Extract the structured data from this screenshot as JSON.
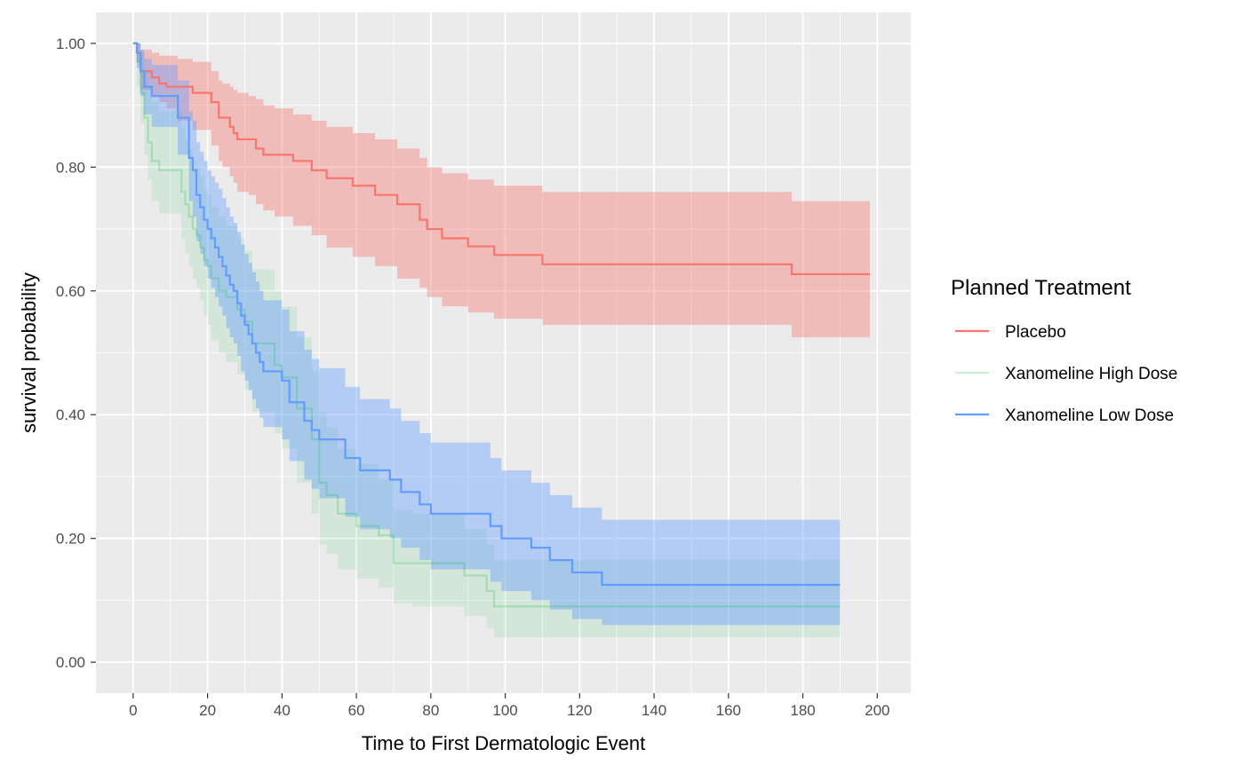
{
  "chart_data": {
    "type": "line",
    "subtype": "kaplan-meier step curves with confidence bands",
    "xlabel": "Time to First Dermatologic Event",
    "ylabel": "survival probability",
    "xlim": [
      -10,
      209
    ],
    "ylim": [
      -0.05,
      1.05
    ],
    "x_ticks": [
      0,
      20,
      40,
      60,
      80,
      100,
      120,
      140,
      160,
      180,
      200
    ],
    "x_tick_labels": [
      "0",
      "20",
      "40",
      "60",
      "80",
      "100",
      "120",
      "140",
      "160",
      "180",
      "200"
    ],
    "y_ticks": [
      0,
      0.2,
      0.4,
      0.6,
      0.8,
      1.0
    ],
    "y_tick_labels": [
      "0.00",
      "0.20",
      "0.40",
      "0.60",
      "0.80",
      "1.00"
    ],
    "grid": true,
    "panel_background": "#ebebeb",
    "legend": {
      "title": "Planned Treatment",
      "position": "right",
      "entries": [
        "Placebo",
        "Xanomeline High Dose",
        "Xanomeline Low Dose"
      ]
    },
    "series": [
      {
        "name": "Placebo",
        "color": "#f8766d",
        "line_opacity": 1.0,
        "band_opacity": 0.4,
        "x": [
          0,
          1,
          2,
          5,
          7,
          9,
          12,
          16,
          21,
          23,
          24,
          26,
          27,
          28,
          31,
          33,
          35,
          38,
          43,
          48,
          52,
          59,
          65,
          71,
          77,
          79,
          83,
          90,
          97,
          110,
          177,
          198
        ],
        "y": [
          1.0,
          0.985,
          0.955,
          0.945,
          0.935,
          0.93,
          0.93,
          0.92,
          0.905,
          0.88,
          0.88,
          0.865,
          0.855,
          0.845,
          0.845,
          0.83,
          0.82,
          0.82,
          0.81,
          0.795,
          0.782,
          0.77,
          0.755,
          0.74,
          0.715,
          0.7,
          0.685,
          0.672,
          0.658,
          0.643,
          0.627,
          0.627
        ],
        "lower": [
          1.0,
          0.97,
          0.925,
          0.915,
          0.905,
          0.895,
          0.875,
          0.86,
          0.835,
          0.81,
          0.8,
          0.785,
          0.775,
          0.76,
          0.755,
          0.74,
          0.73,
          0.72,
          0.705,
          0.69,
          0.67,
          0.655,
          0.64,
          0.62,
          0.605,
          0.59,
          0.575,
          0.565,
          0.555,
          0.545,
          0.525,
          0.525
        ],
        "upper": [
          1.0,
          1.0,
          0.99,
          0.985,
          0.98,
          0.98,
          0.975,
          0.97,
          0.955,
          0.94,
          0.935,
          0.93,
          0.925,
          0.92,
          0.915,
          0.91,
          0.9,
          0.895,
          0.885,
          0.875,
          0.865,
          0.855,
          0.845,
          0.83,
          0.815,
          0.8,
          0.79,
          0.78,
          0.77,
          0.76,
          0.745,
          0.745
        ]
      },
      {
        "name": "Xanomeline High Dose",
        "color": "#00ba38",
        "line_opacity": 0.22,
        "band_opacity": 0.1,
        "x": [
          0,
          1,
          2,
          3,
          4,
          5,
          7,
          13,
          14,
          15,
          16,
          17,
          18,
          19,
          20,
          21,
          23,
          25,
          28,
          30,
          32,
          38,
          40,
          44,
          48,
          50,
          52,
          55,
          60,
          66,
          70,
          75,
          89,
          95,
          97,
          190
        ],
        "y": [
          1.0,
          0.97,
          0.92,
          0.88,
          0.84,
          0.81,
          0.795,
          0.76,
          0.74,
          0.72,
          0.7,
          0.69,
          0.67,
          0.65,
          0.64,
          0.62,
          0.6,
          0.59,
          0.57,
          0.55,
          0.515,
          0.48,
          0.46,
          0.41,
          0.36,
          0.29,
          0.27,
          0.24,
          0.22,
          0.205,
          0.16,
          0.16,
          0.14,
          0.115,
          0.09,
          0.09
        ],
        "lower": [
          1.0,
          0.93,
          0.87,
          0.82,
          0.78,
          0.745,
          0.725,
          0.685,
          0.66,
          0.64,
          0.62,
          0.605,
          0.585,
          0.56,
          0.545,
          0.52,
          0.5,
          0.485,
          0.465,
          0.44,
          0.405,
          0.37,
          0.345,
          0.29,
          0.24,
          0.19,
          0.175,
          0.15,
          0.135,
          0.12,
          0.095,
          0.09,
          0.075,
          0.055,
          0.04,
          0.04
        ],
        "upper": [
          1.0,
          1.0,
          0.985,
          0.955,
          0.93,
          0.905,
          0.89,
          0.865,
          0.845,
          0.83,
          0.81,
          0.8,
          0.785,
          0.765,
          0.755,
          0.735,
          0.72,
          0.705,
          0.685,
          0.665,
          0.635,
          0.6,
          0.575,
          0.525,
          0.47,
          0.405,
          0.38,
          0.345,
          0.32,
          0.295,
          0.245,
          0.24,
          0.215,
          0.19,
          0.165,
          0.165
        ]
      },
      {
        "name": "Xanomeline Low Dose",
        "color": "#619cff",
        "line_opacity": 1.0,
        "band_opacity": 0.4,
        "x": [
          0,
          1,
          2,
          3,
          5,
          12,
          15,
          16,
          17,
          18,
          19,
          20,
          21,
          22,
          23,
          24,
          25,
          26,
          27,
          28,
          29,
          30,
          31,
          32,
          33,
          34,
          35,
          40,
          42,
          46,
          48,
          50,
          57,
          61,
          69,
          72,
          77,
          80,
          96,
          99,
          107,
          112,
          118,
          126,
          190
        ],
        "y": [
          1.0,
          0.985,
          0.955,
          0.93,
          0.915,
          0.88,
          0.815,
          0.795,
          0.755,
          0.735,
          0.715,
          0.7,
          0.685,
          0.67,
          0.655,
          0.64,
          0.625,
          0.61,
          0.6,
          0.58,
          0.56,
          0.545,
          0.53,
          0.515,
          0.5,
          0.485,
          0.47,
          0.455,
          0.42,
          0.39,
          0.375,
          0.36,
          0.33,
          0.31,
          0.295,
          0.275,
          0.255,
          0.24,
          0.22,
          0.2,
          0.185,
          0.165,
          0.145,
          0.125,
          0.125
        ],
        "lower": [
          1.0,
          0.96,
          0.915,
          0.885,
          0.865,
          0.82,
          0.745,
          0.72,
          0.68,
          0.66,
          0.64,
          0.62,
          0.605,
          0.59,
          0.575,
          0.56,
          0.54,
          0.525,
          0.515,
          0.495,
          0.47,
          0.455,
          0.44,
          0.425,
          0.41,
          0.395,
          0.38,
          0.36,
          0.325,
          0.295,
          0.28,
          0.265,
          0.235,
          0.215,
          0.2,
          0.185,
          0.165,
          0.15,
          0.13,
          0.115,
          0.1,
          0.085,
          0.07,
          0.06,
          0.06
        ],
        "upper": [
          1.0,
          1.0,
          0.99,
          0.975,
          0.965,
          0.94,
          0.89,
          0.875,
          0.84,
          0.825,
          0.81,
          0.795,
          0.785,
          0.775,
          0.765,
          0.75,
          0.735,
          0.72,
          0.71,
          0.695,
          0.675,
          0.66,
          0.645,
          0.63,
          0.615,
          0.6,
          0.585,
          0.57,
          0.535,
          0.505,
          0.49,
          0.475,
          0.445,
          0.425,
          0.41,
          0.39,
          0.37,
          0.355,
          0.33,
          0.31,
          0.29,
          0.27,
          0.25,
          0.23,
          0.23
        ]
      }
    ]
  }
}
